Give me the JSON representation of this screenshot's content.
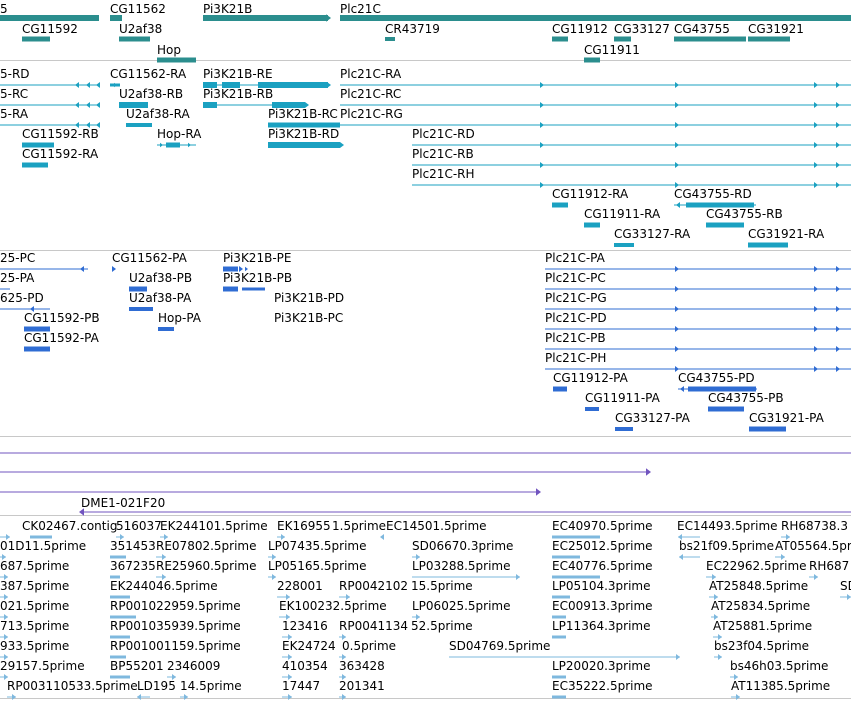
{
  "colors": {
    "gene": "#2b8e8e",
    "transcript": "#1ba1c1",
    "protein": "#2f6cd3",
    "dme": "#7154bf",
    "est": "#7eb8de"
  },
  "genes": {
    "g0": "5",
    "g1": "CG11562",
    "g2": "Pi3K21B",
    "g3": "Plc21C",
    "g4": "CG11592",
    "g5": "U2af38",
    "g6": "CR43719",
    "g7": "CG11912",
    "g8": "CG33127",
    "g9": "CG43755",
    "g10": "CG31921",
    "g11": "Hop",
    "g12": "CG11911"
  },
  "transcripts": {
    "t0": "5-RD",
    "t1": "CG11562-RA",
    "t2": "Pi3K21B-RE",
    "t3": "Plc21C-RA",
    "t4": "5-RC",
    "t5": "U2af38-RB",
    "t6": "Pi3K21B-RB",
    "t7": "Plc21C-RC",
    "t8": "5-RA",
    "t9": "U2af38-RA",
    "t10": "Pi3K21B-RC",
    "t11": "Plc21C-RG",
    "t12": "CG11592-RB",
    "t13": "Hop-RA",
    "t14": "Pi3K21B-RD",
    "t15": "Plc21C-RD",
    "t16": "CG11592-RA",
    "t17": "Plc21C-RB",
    "t18": "Plc21C-RH",
    "t19": "CG11912-RA",
    "t20": "CG43755-RD",
    "t21": "CG11911-RA",
    "t22": "CG43755-RB",
    "t23": "CG33127-RA",
    "t24": "CG31921-RA"
  },
  "proteins": {
    "p0": "25-PC",
    "p1": "CG11562-PA",
    "p2": "Pi3K21B-PE",
    "p3": "Plc21C-PA",
    "p4": "25-PA",
    "p5": "U2af38-PB",
    "p6": "Pi3K21B-PB",
    "p7": "Plc21C-PC",
    "p8": "625-PD",
    "p9": "U2af38-PA",
    "p10": "Pi3K21B-PD",
    "p11": "Plc21C-PG",
    "p12": "CG11592-PB",
    "p13": "Hop-PA",
    "p14": "Pi3K21B-PC",
    "p15": "Plc21C-PD",
    "p16": "CG11592-PA",
    "p17": "Plc21C-PB",
    "p18": "Plc21C-PH",
    "p19": "CG11912-PA",
    "p20": "CG43755-PD",
    "p21": "CG11911-PA",
    "p22": "CG43755-PB",
    "p23": "CG33127-PA",
    "p24": "CG31921-PA"
  },
  "dme": {
    "label": "DME1-021F20"
  },
  "ests": {
    "e0": "CK02467.contig",
    "e1": "516037",
    "e2": "EK244101.5prime",
    "e3": "EK16955",
    "e4": "1.5prime",
    "e5": "EC14501.5prime",
    "e6": "EC40970.5prime",
    "e7": "EC14493.5prime",
    "e8": "RH68738.3",
    "e9": "01D11.5prime",
    "e10": "351453",
    "e11": "RE07802.5prime",
    "e12": "LP07435.5prime",
    "e13": "SD06670.3prime",
    "e14": "EC25012.5prime",
    "e15": "bs21f09.5prime",
    "e16": "AT05564.5prime",
    "e17": "687.5prime",
    "e18": "367235",
    "e19": "RE25960.5prime",
    "e20": "LP05165.5prime",
    "e21": "LP03288.5prime",
    "e22": "EC40776.5prime",
    "e23": "EC22962.5prime",
    "e24": "RH687",
    "e25": "387.5prime",
    "e26": "EK244046.5prime",
    "e27": "228001",
    "e28": "RP0042102",
    "e29": "15.5prime",
    "e30": "LP05104.3prime",
    "e31": "AT25848.5prime",
    "e32": "SD",
    "e33": "021.5prime",
    "e34": "RP001022959.5prime",
    "e35": "EK100232.5prime",
    "e36": "LP06025.5prime",
    "e37": "EC00913.3prime",
    "e38": "AT25834.5prime",
    "e39": "713.5prime",
    "e40": "RP001035939.5prime",
    "e41": "123416",
    "e42": "RP0041134",
    "e43": "52.5prime",
    "e44": "LP11364.3prime",
    "e45": "AT25881.5prime",
    "e46": "933.5prime",
    "e47": "RP001001159.5prime",
    "e48": "EK24724",
    "e49": "0.5prime",
    "e50": "SD04769.5prime",
    "e51": "bs23f04.5prime",
    "e52": "29157.5prime",
    "e53": "BP55201",
    "e54": "2346009",
    "e55": "410354",
    "e56": "363428",
    "e57": "LP20020.3prime",
    "e58": "bs46h03.5prime",
    "e59": "RP003110533.5prime",
    "e60": "LD195",
    "e61": "14.5prime",
    "e62": "17447",
    "e63": "201341",
    "e64": "EC35222.5prime",
    "e65": "AT11385.5prime"
  }
}
